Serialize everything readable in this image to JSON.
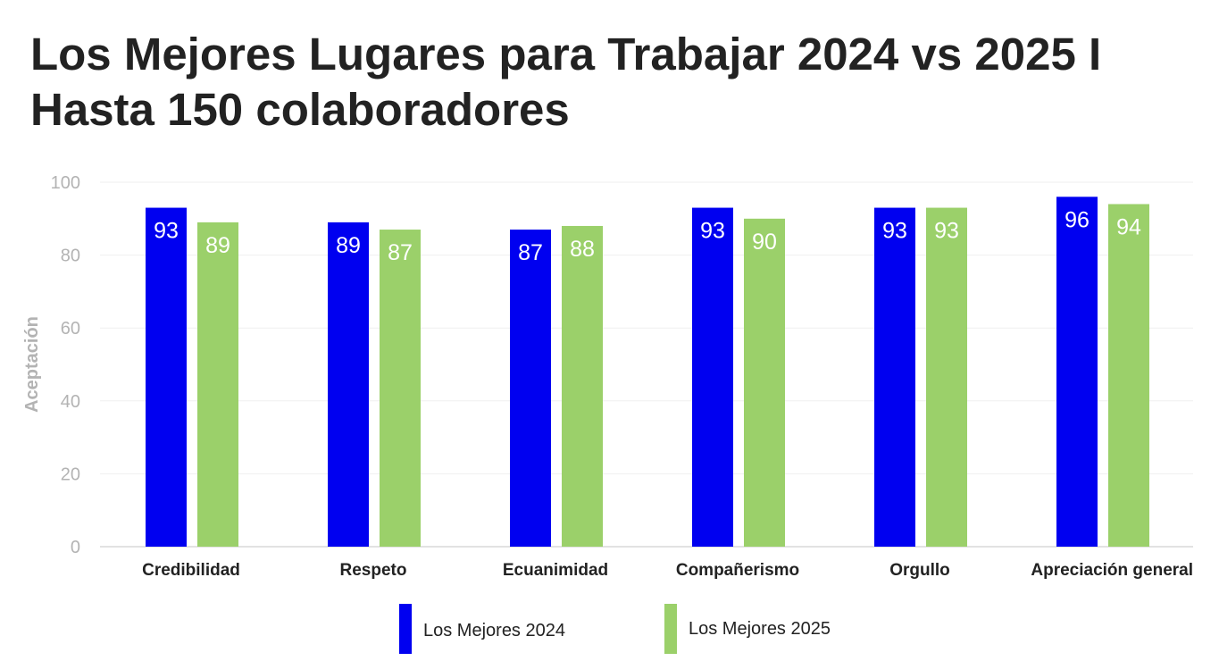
{
  "chart_data": {
    "type": "bar",
    "title": "Los Mejores Lugares para Trabajar 2024 vs 2025 I Hasta 150 colaboradores",
    "xlabel": "",
    "ylabel": "Aceptación",
    "ylim": [
      0,
      100
    ],
    "yticks": [
      0,
      20,
      40,
      60,
      80,
      100
    ],
    "grid": true,
    "legend_position": "bottom",
    "categories": [
      "Credibilidad",
      "Respeto",
      "Ecuanimidad",
      "Compañerismo",
      "Orgullo",
      "Apreciación general"
    ],
    "series": [
      {
        "name": "Los Mejores 2024",
        "color": "#0000f0",
        "values": [
          93,
          89,
          87,
          93,
          93,
          96
        ]
      },
      {
        "name": "Los Mejores 2025",
        "color": "#9bd06a",
        "values": [
          89,
          87,
          88,
          90,
          93,
          94
        ]
      }
    ]
  }
}
